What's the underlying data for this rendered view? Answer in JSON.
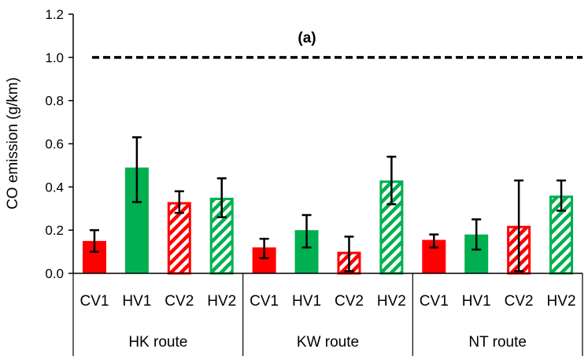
{
  "chart_data": {
    "type": "bar",
    "title": "(a)",
    "ylabel": "CO emission (g/km)",
    "xlabel": "",
    "ylim": [
      0,
      1.2
    ],
    "yticks": [
      "0.0",
      "0.2",
      "0.4",
      "0.6",
      "0.8",
      "1.0",
      "1.2"
    ],
    "reference_line": {
      "value": 1.0,
      "style": "dashed"
    },
    "groups": [
      {
        "name": "HK route",
        "bars": [
          {
            "label": "CV1",
            "value": 0.15,
            "err_low": 0.1,
            "err_high": 0.2,
            "color": "#ff0000",
            "hatched": false
          },
          {
            "label": "HV1",
            "value": 0.49,
            "err_low": 0.33,
            "err_high": 0.63,
            "color": "#00b050",
            "hatched": false
          },
          {
            "label": "CV2",
            "value": 0.33,
            "err_low": 0.28,
            "err_high": 0.38,
            "color": "#ff0000",
            "hatched": true
          },
          {
            "label": "HV2",
            "value": 0.35,
            "err_low": 0.26,
            "err_high": 0.44,
            "color": "#00b050",
            "hatched": true
          }
        ]
      },
      {
        "name": "KW route",
        "bars": [
          {
            "label": "CV1",
            "value": 0.12,
            "err_low": 0.07,
            "err_high": 0.16,
            "color": "#ff0000",
            "hatched": false
          },
          {
            "label": "HV1",
            "value": 0.2,
            "err_low": 0.12,
            "err_high": 0.27,
            "color": "#00b050",
            "hatched": false
          },
          {
            "label": "CV2",
            "value": 0.1,
            "err_low": 0.01,
            "err_high": 0.17,
            "color": "#ff0000",
            "hatched": true
          },
          {
            "label": "HV2",
            "value": 0.43,
            "err_low": 0.32,
            "err_high": 0.54,
            "color": "#00b050",
            "hatched": true
          }
        ]
      },
      {
        "name": "NT route",
        "bars": [
          {
            "label": "CV1",
            "value": 0.155,
            "err_low": 0.12,
            "err_high": 0.18,
            "color": "#ff0000",
            "hatched": false
          },
          {
            "label": "HV1",
            "value": 0.18,
            "err_low": 0.11,
            "err_high": 0.25,
            "color": "#00b050",
            "hatched": false
          },
          {
            "label": "CV2",
            "value": 0.22,
            "err_low": 0.01,
            "err_high": 0.43,
            "color": "#ff0000",
            "hatched": true
          },
          {
            "label": "HV2",
            "value": 0.36,
            "err_low": 0.29,
            "err_high": 0.43,
            "color": "#00b050",
            "hatched": true
          }
        ]
      }
    ]
  }
}
